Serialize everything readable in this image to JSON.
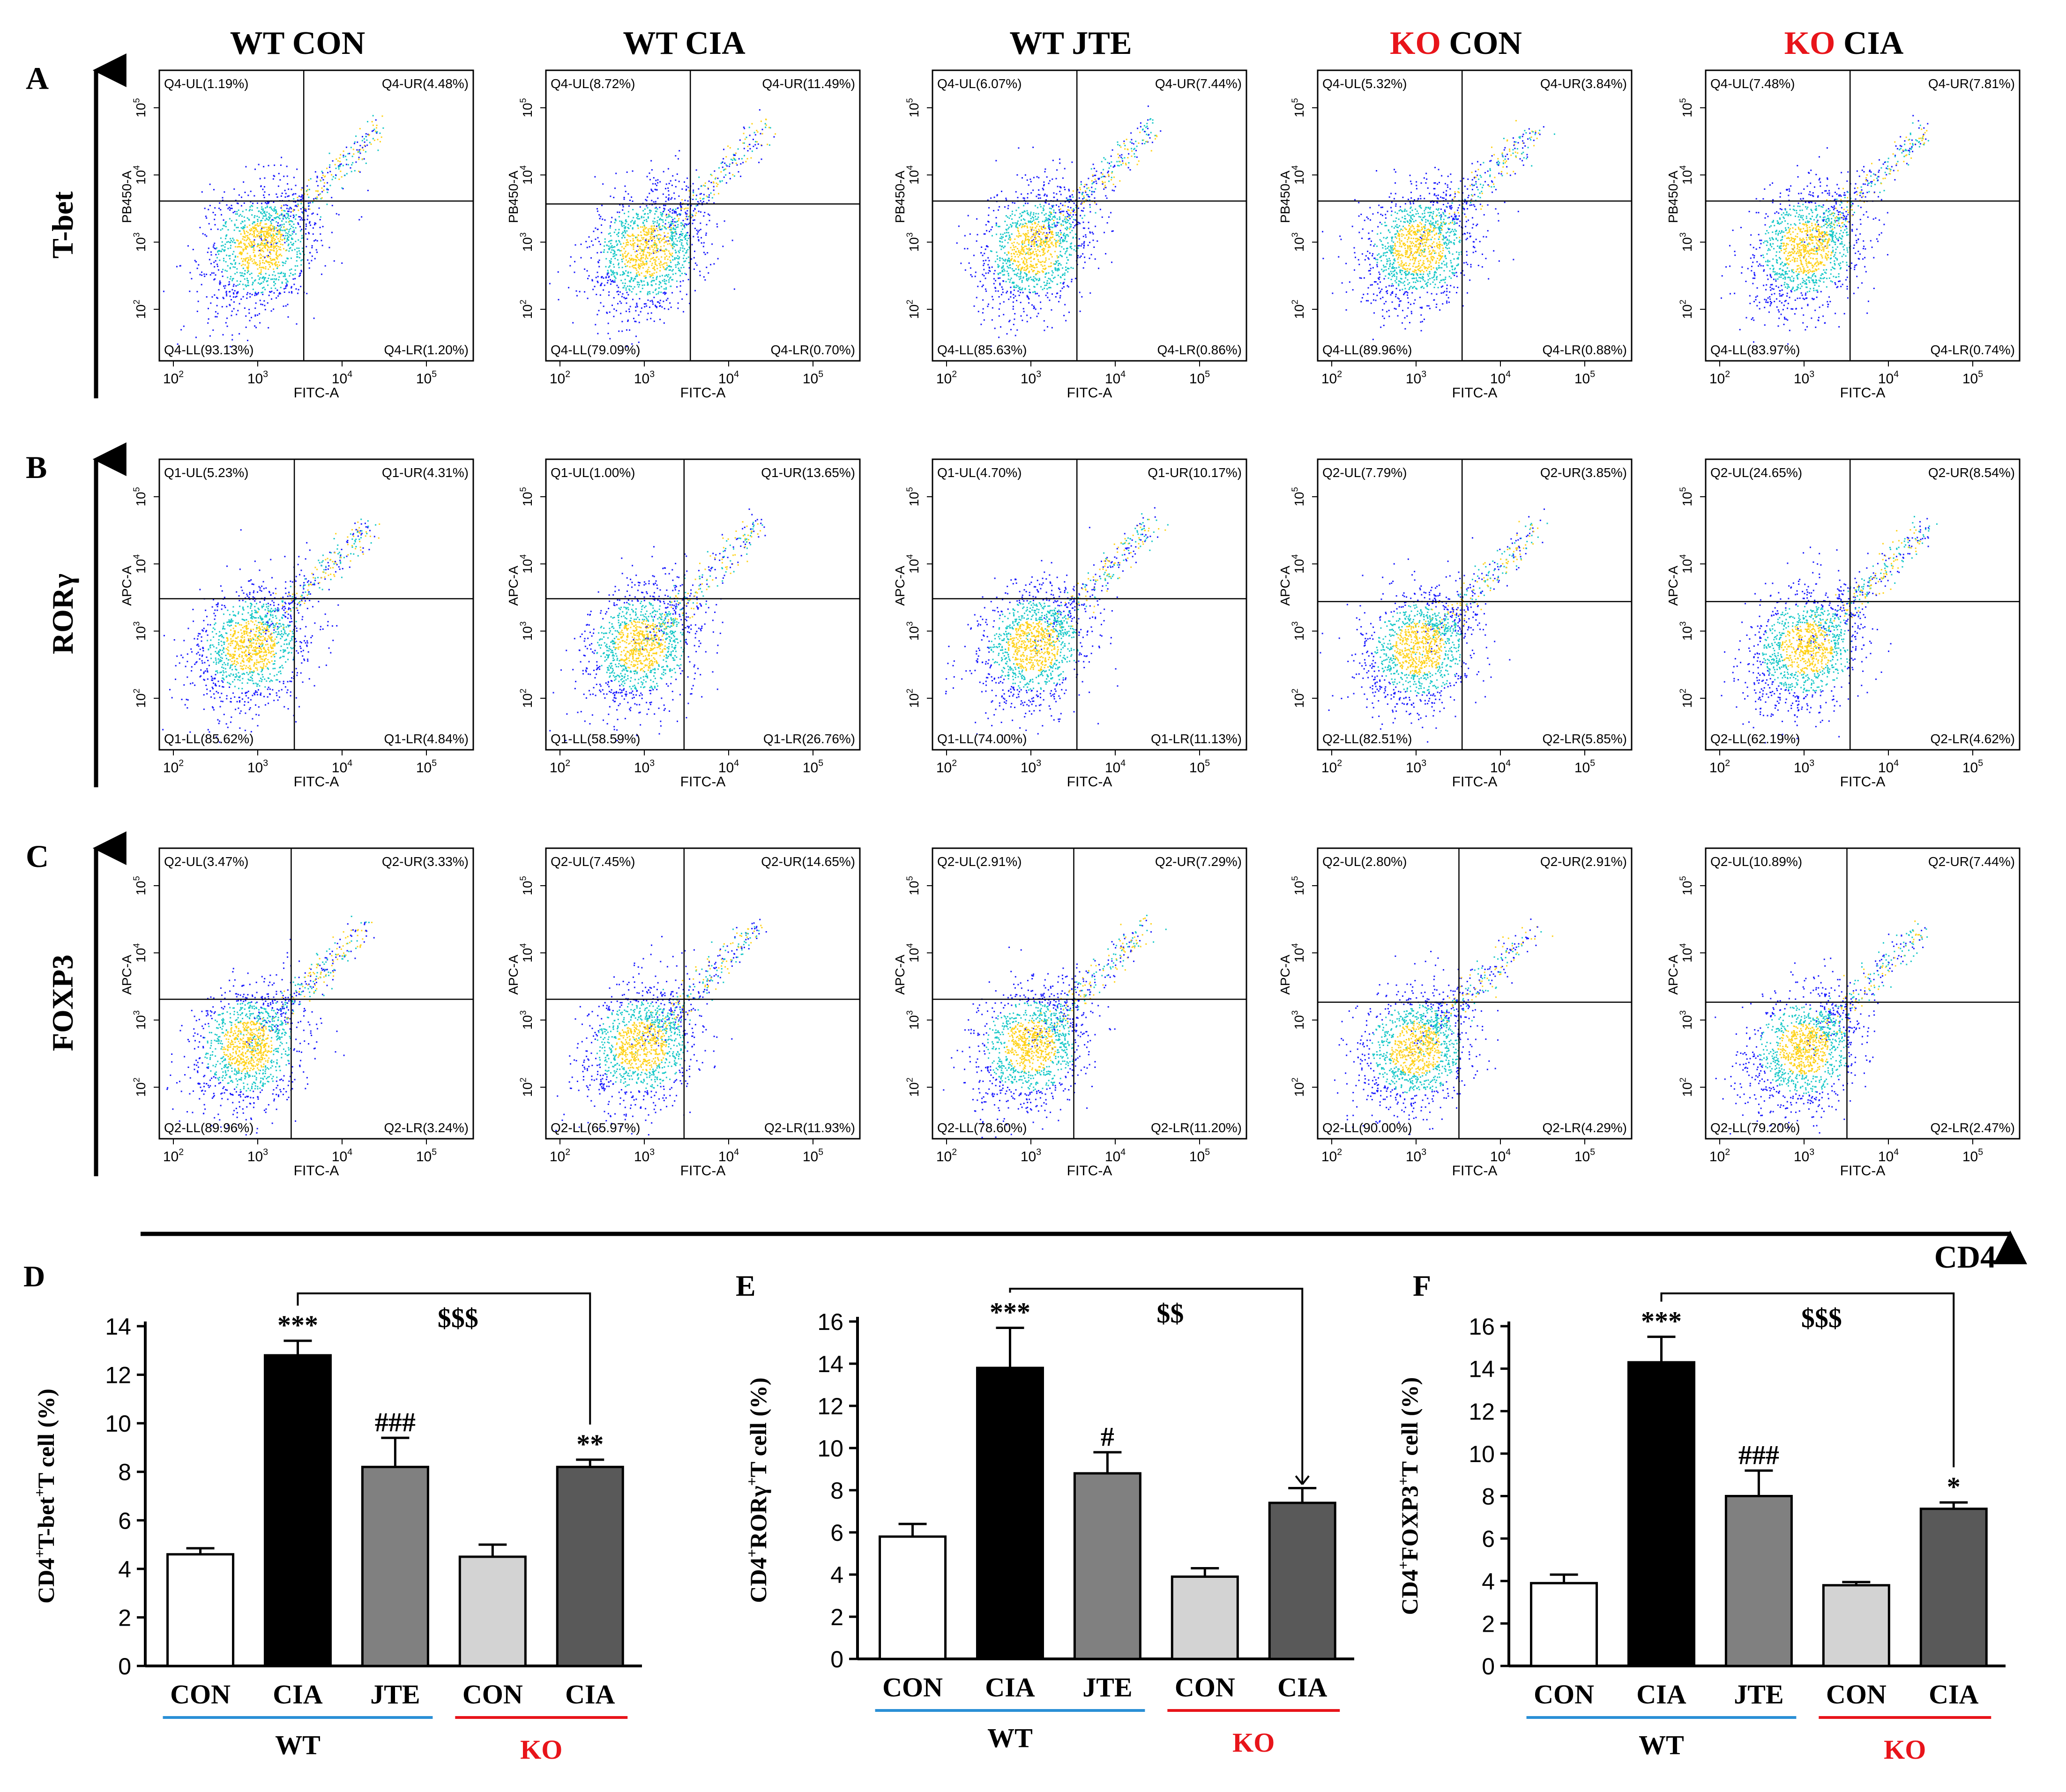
{
  "column_headers": [
    {
      "prefix": "WT",
      "suffix": "CON",
      "prefix_color": "#000000"
    },
    {
      "prefix": "WT",
      "suffix": "CIA",
      "prefix_color": "#000000"
    },
    {
      "prefix": "WT",
      "suffix": "JTE",
      "prefix_color": "#000000"
    },
    {
      "prefix": "KO",
      "suffix": "CON",
      "prefix_color": "#e8141a"
    },
    {
      "prefix": "KO",
      "suffix": "CIA",
      "prefix_color": "#e8141a"
    }
  ],
  "rows": [
    {
      "letter": "A",
      "label": "T-bet",
      "ylabel": "PB450-A"
    },
    {
      "letter": "B",
      "label": "RORγ",
      "ylabel": "APC-A"
    },
    {
      "letter": "C",
      "label": "FOXP3",
      "ylabel": "APC-A"
    }
  ],
  "x_axis_label": "CD4",
  "flow_xlabel": "FITC-A",
  "tick_labels": {
    "t2": {
      "base": "10",
      "exp": "2"
    },
    "t3": {
      "base": "10",
      "exp": "3"
    },
    "t4": {
      "base": "10",
      "exp": "4"
    },
    "t5": {
      "base": "10",
      "exp": "5"
    }
  },
  "colors": {
    "wt_underline": "#2a8fd6",
    "ko_underline": "#e8141a",
    "ko_text": "#e8141a",
    "dot_low": "#1a1aff",
    "dot_mid": "#19c8c8",
    "dot_high": "#ffd21a"
  },
  "flow_panels": [
    [
      {
        "ul": "Q4-UL(1.19%)",
        "ur": "Q4-UR(4.48%)",
        "ll": "Q4-LL(93.13%)",
        "lr": "Q4-LR(1.20%)",
        "gate_x": 0.46,
        "gate_y": 0.45
      },
      {
        "ul": "Q4-UL(8.72%)",
        "ur": "Q4-UR(11.49%)",
        "ll": "Q4-LL(79.09%)",
        "lr": "Q4-LR(0.70%)",
        "gate_x": 0.46,
        "gate_y": 0.46
      },
      {
        "ul": "Q4-UL(6.07%)",
        "ur": "Q4-UR(7.44%)",
        "ll": "Q4-LL(85.63%)",
        "lr": "Q4-LR(0.86%)",
        "gate_x": 0.46,
        "gate_y": 0.45
      },
      {
        "ul": "Q4-UL(5.32%)",
        "ur": "Q4-UR(3.84%)",
        "ll": "Q4-LL(89.96%)",
        "lr": "Q4-LR(0.88%)",
        "gate_x": 0.46,
        "gate_y": 0.45
      },
      {
        "ul": "Q4-UL(7.48%)",
        "ur": "Q4-UR(7.81%)",
        "ll": "Q4-LL(83.97%)",
        "lr": "Q4-LR(0.74%)",
        "gate_x": 0.46,
        "gate_y": 0.45
      }
    ],
    [
      {
        "ul": "Q1-UL(5.23%)",
        "ur": "Q1-UR(4.31%)",
        "ll": "Q1-LL(85.62%)",
        "lr": "Q1-LR(4.84%)",
        "gate_x": 0.43,
        "gate_y": 0.48
      },
      {
        "ul": "Q1-UL(1.00%)",
        "ur": "Q1-UR(13.65%)",
        "ll": "Q1-LL(58.59%)",
        "lr": "Q1-LR(26.76%)",
        "gate_x": 0.44,
        "gate_y": 0.48
      },
      {
        "ul": "Q1-UL(4.70%)",
        "ur": "Q1-UR(10.17%)",
        "ll": "Q1-LL(74.00%)",
        "lr": "Q1-LR(11.13%)",
        "gate_x": 0.46,
        "gate_y": 0.48
      },
      {
        "ul": "Q2-UL(7.79%)",
        "ur": "Q2-UR(3.85%)",
        "ll": "Q2-LL(82.51%)",
        "lr": "Q2-LR(5.85%)",
        "gate_x": 0.46,
        "gate_y": 0.49
      },
      {
        "ul": "Q2-UL(24.65%)",
        "ur": "Q2-UR(8.54%)",
        "ll": "Q2-LL(62.19%)",
        "lr": "Q2-LR(4.62%)",
        "gate_x": 0.46,
        "gate_y": 0.49
      }
    ],
    [
      {
        "ul": "Q2-UL(3.47%)",
        "ur": "Q2-UR(3.33%)",
        "ll": "Q2-LL(89.96%)",
        "lr": "Q2-LR(3.24%)",
        "gate_x": 0.42,
        "gate_y": 0.52
      },
      {
        "ul": "Q2-UL(7.45%)",
        "ur": "Q2-UR(14.65%)",
        "ll": "Q2-LL(65.97%)",
        "lr": "Q2-LR(11.93%)",
        "gate_x": 0.44,
        "gate_y": 0.52
      },
      {
        "ul": "Q2-UL(2.91%)",
        "ur": "Q2-UR(7.29%)",
        "ll": "Q2-LL(78.60%)",
        "lr": "Q2-LR(11.20%)",
        "gate_x": 0.45,
        "gate_y": 0.52
      },
      {
        "ul": "Q2-UL(2.80%)",
        "ur": "Q2-UR(2.91%)",
        "ll": "Q2-LL(90.00%)",
        "lr": "Q2-LR(4.29%)",
        "gate_x": 0.45,
        "gate_y": 0.53
      },
      {
        "ul": "Q2-UL(10.89%)",
        "ur": "Q2-UR(7.44%)",
        "ll": "Q2-LL(79.20%)",
        "lr": "Q2-LR(2.47%)",
        "gate_x": 0.45,
        "gate_y": 0.53
      }
    ]
  ],
  "chart_data": [
    {
      "type": "bar",
      "letter": "D",
      "ylabel": {
        "p1": "CD4",
        "s1": "+",
        "p2": "T-bet",
        "s2": "+",
        "p3": "T cell (%)"
      },
      "ylim": [
        0,
        14
      ],
      "yticks": [
        "0",
        "2",
        "4",
        "6",
        "8",
        "10",
        "12",
        "14"
      ],
      "categories": [
        "CON",
        "CIA",
        "JTE",
        "CON",
        "CIA"
      ],
      "values": [
        4.6,
        12.8,
        8.2,
        4.5,
        8.2
      ],
      "errors": [
        0.25,
        0.6,
        1.2,
        0.5,
        0.3
      ],
      "fills": [
        "#ffffff",
        "#000000",
        "#808080",
        "#d3d3d3",
        "#595959"
      ],
      "annotations": [
        "",
        "***",
        "###",
        "",
        "**"
      ],
      "bracket_label": "$$$",
      "groups": [
        {
          "label": "WT",
          "color": "#000000",
          "line": "#2a8fd6"
        },
        {
          "label": "KO",
          "color": "#e8141a",
          "line": "#e8141a"
        }
      ]
    },
    {
      "type": "bar",
      "letter": "E",
      "ylabel": {
        "p1": "CD4",
        "s1": "+",
        "p2": "RORγ",
        "s2": "+",
        "p3": "T cell (%)"
      },
      "ylim": [
        0,
        16
      ],
      "yticks": [
        "0",
        "2",
        "4",
        "6",
        "8",
        "10",
        "12",
        "14",
        "16"
      ],
      "categories": [
        "CON",
        "CIA",
        "JTE",
        "CON",
        "CIA"
      ],
      "values": [
        5.8,
        13.8,
        8.8,
        3.9,
        7.4
      ],
      "errors": [
        0.6,
        1.9,
        1.0,
        0.4,
        0.7
      ],
      "fills": [
        "#ffffff",
        "#000000",
        "#808080",
        "#d3d3d3",
        "#595959"
      ],
      "annotations": [
        "",
        "***",
        "#",
        "",
        ""
      ],
      "bracket_label": "$$",
      "groups": [
        {
          "label": "WT",
          "color": "#000000",
          "line": "#2a8fd6"
        },
        {
          "label": "KO",
          "color": "#e8141a",
          "line": "#e8141a"
        }
      ]
    },
    {
      "type": "bar",
      "letter": "F",
      "ylabel": {
        "p1": "CD4",
        "s1": "+",
        "p2": "FOXP3",
        "s2": "+",
        "p3": "T cell (%)"
      },
      "ylim": [
        0,
        16
      ],
      "yticks": [
        "0",
        "2",
        "4",
        "6",
        "8",
        "10",
        "12",
        "14",
        "16"
      ],
      "categories": [
        "CON",
        "CIA",
        "JTE",
        "CON",
        "CIA"
      ],
      "values": [
        3.9,
        14.3,
        8.0,
        3.8,
        7.4
      ],
      "errors": [
        0.4,
        1.2,
        1.2,
        0.15,
        0.3
      ],
      "fills": [
        "#ffffff",
        "#000000",
        "#808080",
        "#d3d3d3",
        "#595959"
      ],
      "annotations": [
        "",
        "***",
        "###",
        "",
        "*"
      ],
      "bracket_label": "$$$",
      "groups": [
        {
          "label": "WT",
          "color": "#000000",
          "line": "#2a8fd6"
        },
        {
          "label": "KO",
          "color": "#e8141a",
          "line": "#e8141a"
        }
      ]
    }
  ]
}
